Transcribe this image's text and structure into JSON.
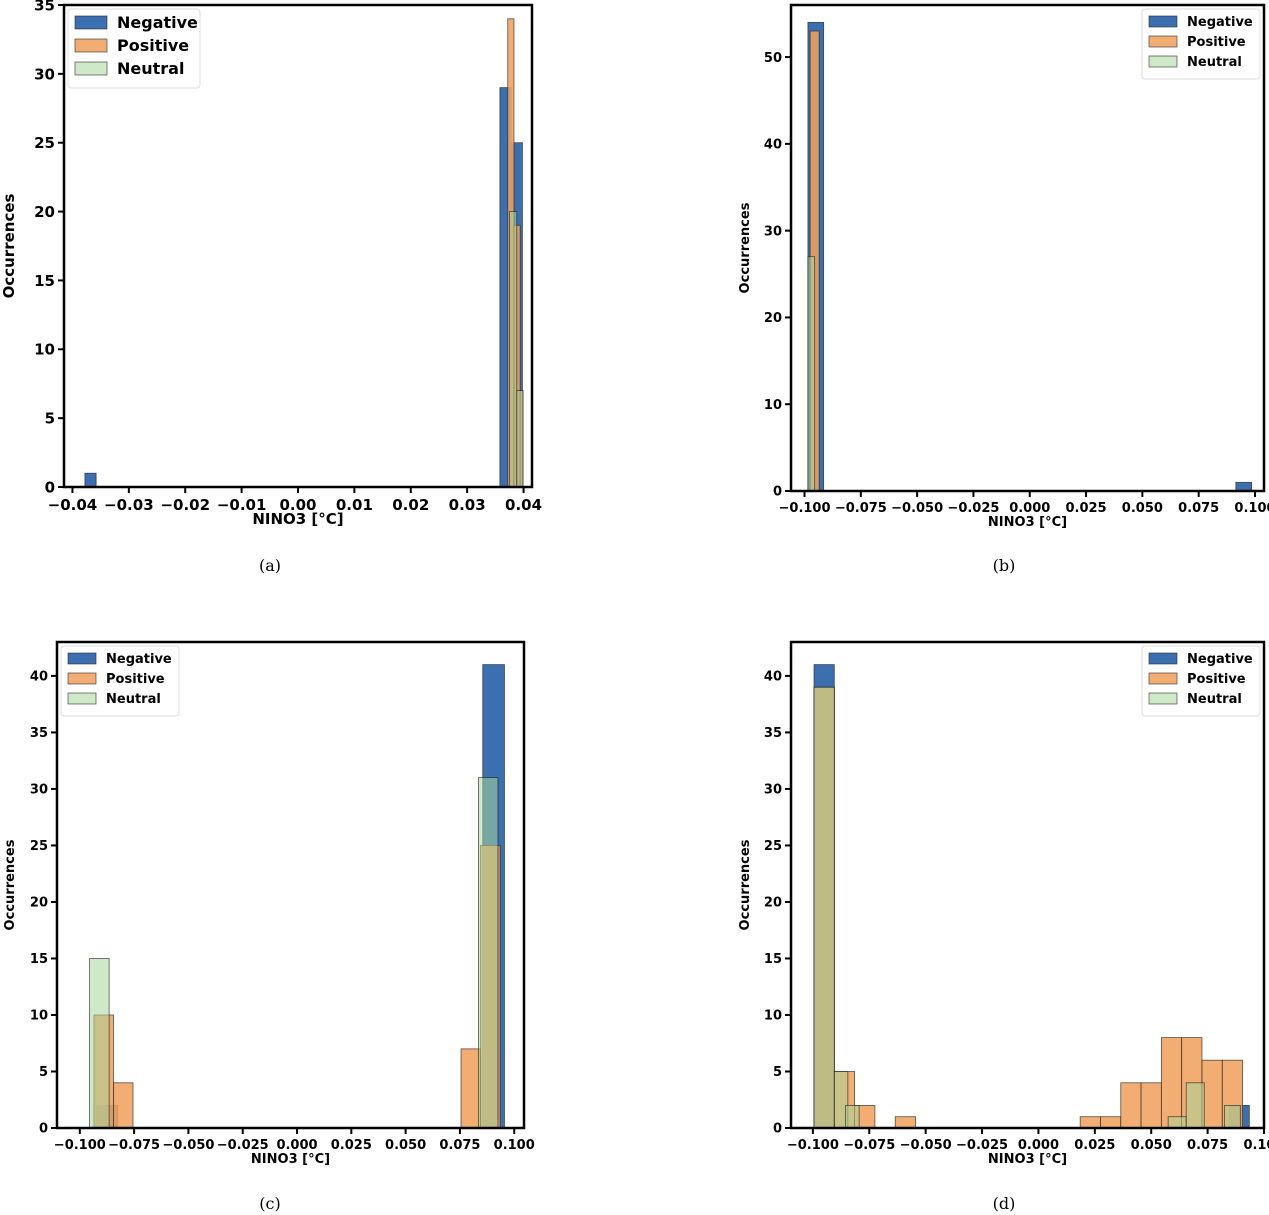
{
  "figure": {
    "captions": [
      "(a)",
      "(b)",
      "(c)",
      "(d)"
    ]
  },
  "colors": {
    "negative": "#3b6fb0",
    "positive": "#f0a25f",
    "neutral": "#a8d59b",
    "axis": "#000000"
  },
  "chart_data": [
    {
      "id": "a",
      "type": "bar",
      "title": "",
      "xlabel": "NINO3 [°C]",
      "ylabel": "Occurrences",
      "xlim": [
        -0.0415,
        0.0415
      ],
      "ylim": [
        0,
        35
      ],
      "xticks": [
        -0.04,
        -0.03,
        -0.02,
        -0.01,
        0.0,
        0.01,
        0.02,
        0.03,
        0.04
      ],
      "xtick_labels": [
        "−0.04",
        "−0.03",
        "−0.02",
        "−0.01",
        "0.00",
        "0.01",
        "0.02",
        "0.03",
        "0.04"
      ],
      "yticks": [
        0,
        5,
        10,
        15,
        20,
        25,
        30,
        35
      ],
      "ytick_labels": [
        "0",
        "5",
        "10",
        "15",
        "20",
        "25",
        "30",
        "35"
      ],
      "legend": {
        "position": "top-left",
        "entries": [
          "Negative",
          "Positive",
          "Neutral"
        ]
      },
      "series": [
        {
          "name": "Negative",
          "bins": [
            [
              -0.0378,
              -0.0358,
              1
            ],
            [
              0.0358,
              0.0378,
              29
            ],
            [
              0.0378,
              0.0398,
              25
            ]
          ]
        },
        {
          "name": "Positive",
          "bins": [
            [
              0.0372,
              0.0383,
              34
            ],
            [
              0.0383,
              0.0394,
              19
            ],
            [
              0.0394,
              0.0399,
              7
            ]
          ]
        },
        {
          "name": "Neutral",
          "bins": [
            [
              0.0375,
              0.0388,
              20
            ],
            [
              0.0388,
              0.0399,
              7
            ]
          ]
        }
      ]
    },
    {
      "id": "b",
      "type": "bar",
      "title": "",
      "xlabel": "NINO3 [°C]",
      "ylabel": "Occurrences",
      "xlim": [
        -0.106,
        0.104
      ],
      "ylim": [
        0,
        56
      ],
      "xticks": [
        -0.1,
        -0.075,
        -0.05,
        -0.025,
        0.0,
        0.025,
        0.05,
        0.075,
        0.1
      ],
      "xtick_labels": [
        "−0.100",
        "−0.075",
        "−0.050",
        "−0.025",
        "0.000",
        "0.025",
        "0.050",
        "0.075",
        "0.100"
      ],
      "yticks": [
        0,
        10,
        20,
        30,
        40,
        50
      ],
      "ytick_labels": [
        "0",
        "10",
        "20",
        "30",
        "40",
        "50"
      ],
      "legend": {
        "position": "top-right",
        "entries": [
          "Negative",
          "Positive",
          "Neutral"
        ]
      },
      "series": [
        {
          "name": "Negative",
          "bins": [
            [
              -0.0985,
              -0.0915,
              54
            ],
            [
              0.0915,
              0.0985,
              1
            ]
          ]
        },
        {
          "name": "Positive",
          "bins": [
            [
              -0.0975,
              -0.0935,
              53
            ]
          ]
        },
        {
          "name": "Neutral",
          "bins": [
            [
              -0.0985,
              -0.0955,
              27
            ]
          ]
        }
      ]
    },
    {
      "id": "c",
      "type": "bar",
      "title": "",
      "xlabel": "NINO3 [°C]",
      "ylabel": "Occurrences",
      "xlim": [
        -0.1105,
        0.1045
      ],
      "ylim": [
        0,
        43
      ],
      "xticks": [
        -0.1,
        -0.075,
        -0.05,
        -0.025,
        0.0,
        0.025,
        0.05,
        0.075,
        0.1
      ],
      "xtick_labels": [
        "−0.100",
        "−0.075",
        "−0.050",
        "−0.025",
        "0.000",
        "0.025",
        "0.050",
        "0.075",
        "0.100"
      ],
      "yticks": [
        0,
        5,
        10,
        15,
        20,
        25,
        30,
        35,
        40
      ],
      "ytick_labels": [
        "0",
        "5",
        "10",
        "15",
        "20",
        "25",
        "30",
        "35",
        "40"
      ],
      "legend": {
        "position": "top-left",
        "entries": [
          "Negative",
          "Positive",
          "Neutral"
        ]
      },
      "series": [
        {
          "name": "Negative",
          "bins": [
            [
              -0.0925,
              -0.0825,
              2
            ],
            [
              0.0855,
              0.0955,
              41
            ]
          ]
        },
        {
          "name": "Positive",
          "bins": [
            [
              -0.0935,
              -0.0845,
              10
            ],
            [
              -0.0845,
              -0.0755,
              4
            ],
            [
              0.0755,
              0.0845,
              7
            ],
            [
              0.0845,
              0.0935,
              25
            ]
          ]
        },
        {
          "name": "Neutral",
          "bins": [
            [
              -0.0955,
              -0.0865,
              15
            ],
            [
              0.0835,
              0.0925,
              31
            ]
          ]
        }
      ]
    },
    {
      "id": "d",
      "type": "bar",
      "title": "",
      "xlabel": "NINO3 [°C]",
      "ylabel": "Occurrences",
      "xlim": [
        -0.1097,
        0.1
      ],
      "ylim": [
        0,
        43
      ],
      "xticks": [
        -0.1,
        -0.075,
        -0.05,
        -0.025,
        0.0,
        0.025,
        0.05,
        0.075,
        0.1
      ],
      "xtick_labels": [
        "−0.100",
        "−0.075",
        "−0.050",
        "−0.025",
        "0.000",
        "0.025",
        "0.050",
        "0.075",
        "0.100"
      ],
      "yticks": [
        0,
        5,
        10,
        15,
        20,
        25,
        30,
        35,
        40
      ],
      "ytick_labels": [
        "0",
        "5",
        "10",
        "15",
        "20",
        "25",
        "30",
        "35",
        "40"
      ],
      "legend": {
        "position": "top-right",
        "entries": [
          "Negative",
          "Positive",
          "Neutral"
        ]
      },
      "series": [
        {
          "name": "Negative",
          "bins": [
            [
              -0.0995,
              -0.0905,
              41
            ],
            [
              0.0845,
              0.0935,
              2
            ]
          ]
        },
        {
          "name": "Positive",
          "bins": [
            [
              -0.0995,
              -0.0905,
              39
            ],
            [
              -0.0905,
              -0.0815,
              5
            ],
            [
              -0.0815,
              -0.0725,
              2
            ],
            [
              -0.0635,
              -0.0545,
              1
            ],
            [
              0.0185,
              0.0275,
              1
            ],
            [
              0.0275,
              0.0365,
              1
            ],
            [
              0.0365,
              0.0455,
              4
            ],
            [
              0.0455,
              0.0545,
              4
            ],
            [
              0.0545,
              0.0635,
              8
            ],
            [
              0.0635,
              0.0725,
              8
            ],
            [
              0.0725,
              0.0815,
              6
            ],
            [
              0.0815,
              0.0905,
              6
            ]
          ]
        },
        {
          "name": "Neutral",
          "bins": [
            [
              -0.0995,
              -0.0905,
              39
            ],
            [
              -0.0905,
              -0.0845,
              5
            ],
            [
              -0.0855,
              -0.0795,
              2
            ],
            [
              0.0575,
              0.0655,
              1
            ],
            [
              0.0655,
              0.0735,
              4
            ],
            [
              0.0825,
              0.0895,
              2
            ]
          ]
        }
      ]
    }
  ]
}
